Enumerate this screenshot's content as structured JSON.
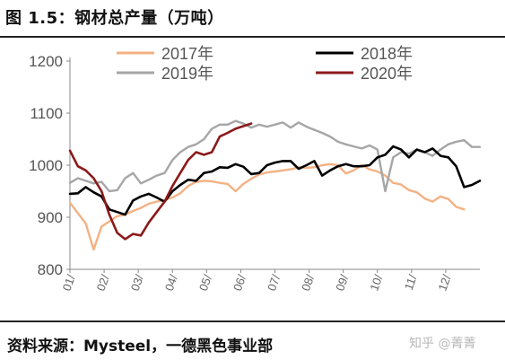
{
  "page": {
    "title": "图 1.5：钢材总产量（万吨）",
    "source": "资料来源：Mysteel，一德黑色事业部",
    "watermark": "知乎 @菁菁"
  },
  "chart_data": {
    "type": "line",
    "title": "",
    "xlabel": "",
    "ylabel": "",
    "ylim": [
      800,
      1200
    ],
    "yticks": [
      800,
      900,
      1000,
      1100,
      1200
    ],
    "x_tick_labels": [
      "01/",
      "02/",
      "03/",
      "04/",
      "05/",
      "06/",
      "07/",
      "08/",
      "09/",
      "10/",
      "11/",
      "12/"
    ],
    "x_domain": [
      0,
      52
    ],
    "grid": false,
    "legend_position": "top",
    "series": [
      {
        "name": "2017年",
        "color": "#F4B183",
        "x": [
          0,
          1,
          2,
          3,
          4,
          5,
          6,
          7,
          8,
          9,
          10,
          11,
          12,
          13,
          14,
          15,
          16,
          17,
          18,
          19,
          20,
          21,
          22,
          23,
          24,
          25,
          26,
          27,
          28,
          29,
          30,
          31,
          32,
          33,
          34,
          35,
          36,
          37,
          38,
          39,
          40,
          41,
          42,
          43,
          44,
          45,
          46,
          47,
          48,
          49,
          50
        ],
        "values": [
          928,
          908,
          888,
          838,
          882,
          892,
          902,
          905,
          912,
          918,
          926,
          930,
          933,
          938,
          946,
          960,
          968,
          970,
          969,
          966,
          964,
          950,
          964,
          974,
          982,
          986,
          988,
          990,
          992,
          996,
          995,
          996,
          1000,
          1002,
          1000,
          984,
          990,
          1000,
          992,
          988,
          980,
          966,
          963,
          952,
          948,
          936,
          930,
          940,
          935,
          920,
          915
        ]
      },
      {
        "name": "2018年",
        "color": "#000000",
        "x": [
          0,
          1,
          2,
          3,
          4,
          5,
          6,
          7,
          8,
          9,
          10,
          11,
          12,
          13,
          14,
          15,
          16,
          17,
          18,
          19,
          20,
          21,
          22,
          23,
          24,
          25,
          26,
          27,
          28,
          29,
          30,
          31,
          32,
          33,
          34,
          35,
          36,
          37,
          38,
          39,
          40,
          41,
          42,
          43,
          44,
          45,
          46,
          47,
          48,
          49,
          50,
          51,
          52
        ],
        "values": [
          945,
          946,
          958,
          948,
          940,
          915,
          910,
          905,
          932,
          940,
          945,
          938,
          930,
          950,
          962,
          972,
          970,
          985,
          988,
          996,
          995,
          1002,
          997,
          983,
          985,
          1000,
          1005,
          1008,
          1008,
          993,
          1000,
          1008,
          980,
          990,
          998,
          1002,
          998,
          998,
          1000,
          1015,
          1020,
          1036,
          1030,
          1015,
          1030,
          1025,
          1032,
          1018,
          1015,
          998,
          958,
          962,
          970
        ]
      },
      {
        "name": "2019年",
        "color": "#A6A6A6",
        "x": [
          0,
          1,
          2,
          3,
          4,
          5,
          6,
          7,
          8,
          9,
          10,
          11,
          12,
          13,
          14,
          15,
          16,
          17,
          18,
          19,
          20,
          21,
          22,
          23,
          24,
          25,
          26,
          27,
          28,
          29,
          30,
          31,
          32,
          33,
          34,
          35,
          36,
          37,
          38,
          39,
          40,
          41,
          42,
          43,
          44,
          45,
          46,
          47,
          48,
          49,
          50,
          51,
          52
        ],
        "values": [
          966,
          975,
          970,
          965,
          968,
          950,
          952,
          975,
          985,
          965,
          972,
          980,
          985,
          1010,
          1025,
          1035,
          1040,
          1050,
          1070,
          1078,
          1078,
          1085,
          1080,
          1072,
          1078,
          1074,
          1078,
          1082,
          1072,
          1082,
          1074,
          1068,
          1062,
          1055,
          1045,
          1040,
          1036,
          1032,
          1038,
          1030,
          950,
          1015,
          1025,
          1022,
          1030,
          1025,
          1018,
          1030,
          1040,
          1045,
          1048,
          1035,
          1035
        ]
      },
      {
        "name": "2020年",
        "color": "#8B1A1A",
        "x": [
          0,
          1,
          2,
          3,
          4,
          5,
          6,
          7,
          8,
          9,
          10,
          11,
          12,
          13,
          14,
          15,
          16,
          17,
          18,
          19,
          20,
          21,
          22,
          23
        ],
        "values": [
          1028,
          998,
          990,
          975,
          950,
          905,
          870,
          858,
          868,
          865,
          890,
          910,
          930,
          960,
          985,
          1010,
          1025,
          1020,
          1025,
          1055,
          1062,
          1070,
          1075,
          1080
        ]
      }
    ]
  }
}
